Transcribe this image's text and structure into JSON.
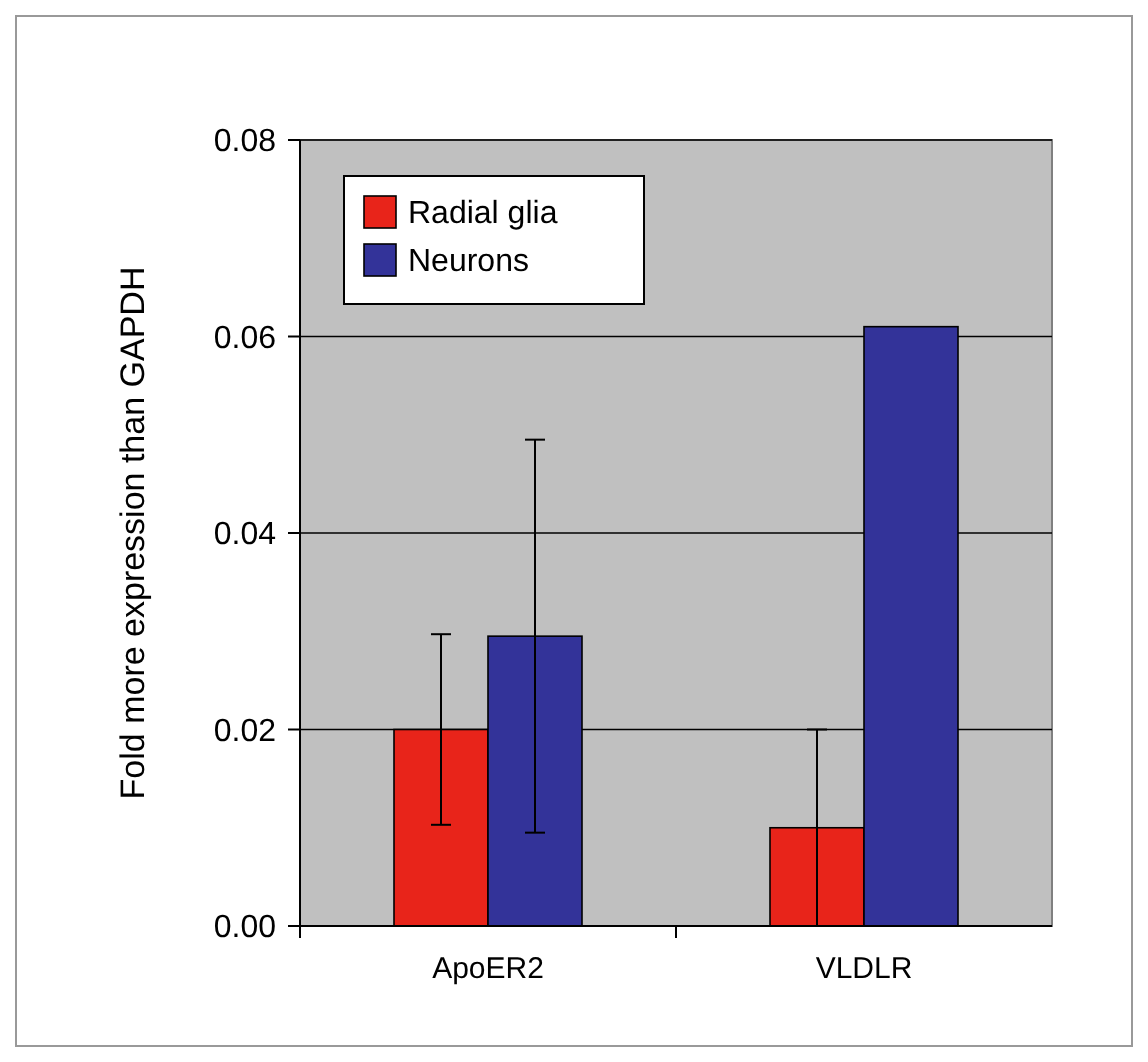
{
  "chart_data": {
    "type": "bar",
    "ylabel": "Fold more expression than GAPDH",
    "categories": [
      "ApoER2",
      "VLDLR"
    ],
    "series": [
      {
        "name": "Radial glia",
        "color": "#e8241a",
        "values": [
          0.02,
          0.01
        ],
        "errors": [
          0.0097,
          0.01
        ]
      },
      {
        "name": "Neurons",
        "color": "#333399",
        "values": [
          0.0295,
          0.061
        ],
        "errors": [
          0.02,
          null
        ]
      }
    ],
    "ylim": [
      0,
      0.08
    ],
    "yticks": [
      {
        "value": 0,
        "label": "0.00"
      },
      {
        "value": 0.02,
        "label": "0.02"
      },
      {
        "value": 0.04,
        "label": "0.04"
      },
      {
        "value": 0.06,
        "label": "0.06"
      },
      {
        "value": 0.08,
        "label": "0.08"
      }
    ],
    "grid": "y",
    "legend": "top left"
  }
}
